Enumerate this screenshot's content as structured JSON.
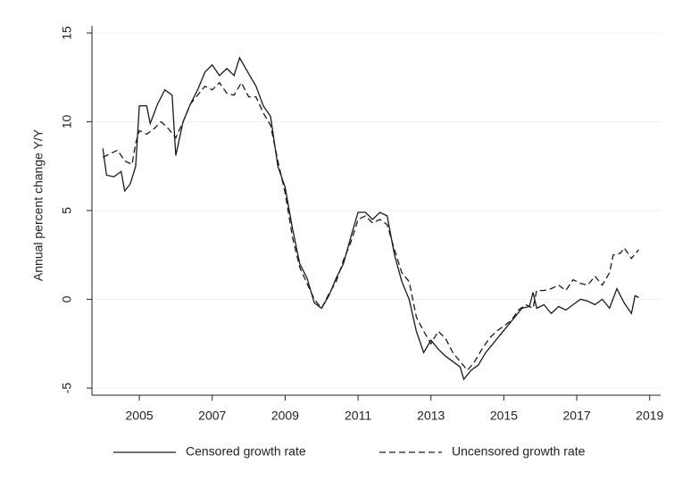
{
  "chart_data": {
    "type": "line",
    "ylabel": "Annual percent change Y/Y",
    "xlim": [
      2003.7,
      2019.3
    ],
    "xticks": [
      2005,
      2007,
      2009,
      2011,
      2013,
      2015,
      2017,
      2019
    ],
    "ylim": [
      -5.4,
      15.4
    ],
    "yticks": [
      -5,
      0,
      5,
      10,
      15
    ],
    "grid": true,
    "legend": "bottom",
    "series": [
      {
        "name": "Censored growth rate",
        "color": "#1a1a1a",
        "style": "solid",
        "x": [
          2004.0,
          2004.1,
          2004.3,
          2004.5,
          2004.6,
          2004.75,
          2004.9,
          2005.0,
          2005.2,
          2005.3,
          2005.5,
          2005.7,
          2005.9,
          2006.0,
          2006.2,
          2006.4,
          2006.6,
          2006.8,
          2007.0,
          2007.2,
          2007.4,
          2007.6,
          2007.75,
          2008.0,
          2008.2,
          2008.4,
          2008.6,
          2008.8,
          2009.0,
          2009.2,
          2009.4,
          2009.6,
          2009.8,
          2010.0,
          2010.2,
          2010.4,
          2010.6,
          2010.8,
          2011.0,
          2011.2,
          2011.4,
          2011.6,
          2011.8,
          2012.0,
          2012.2,
          2012.4,
          2012.6,
          2012.8,
          2013.0,
          2013.2,
          2013.4,
          2013.6,
          2013.8,
          2013.9,
          2014.1,
          2014.3,
          2014.5,
          2014.7,
          2014.9,
          2015.1,
          2015.3,
          2015.5,
          2015.7,
          2015.8,
          2015.9,
          2016.1,
          2016.3,
          2016.5,
          2016.7,
          2016.9,
          2017.1,
          2017.3,
          2017.5,
          2017.7,
          2017.9,
          2018.1,
          2018.3,
          2018.5,
          2018.6,
          2018.7
        ],
        "values": [
          8.5,
          7.0,
          6.9,
          7.2,
          6.1,
          6.5,
          7.5,
          10.9,
          10.9,
          9.9,
          11.0,
          11.8,
          11.5,
          8.1,
          10.0,
          11.0,
          11.8,
          12.8,
          13.2,
          12.6,
          13.0,
          12.6,
          13.6,
          12.7,
          12.0,
          10.9,
          10.3,
          7.5,
          6.3,
          4.0,
          2.0,
          1.2,
          -0.2,
          -0.5,
          0.2,
          1.2,
          2.0,
          3.5,
          4.9,
          4.9,
          4.5,
          4.9,
          4.7,
          2.5,
          1.0,
          0.0,
          -1.8,
          -3.0,
          -2.3,
          -2.8,
          -3.2,
          -3.5,
          -3.8,
          -4.5,
          -4.0,
          -3.7,
          -3.0,
          -2.5,
          -2.0,
          -1.5,
          -1.0,
          -0.5,
          -0.4,
          0.4,
          -0.5,
          -0.3,
          -0.8,
          -0.4,
          -0.6,
          -0.3,
          0.0,
          -0.1,
          -0.3,
          0.0,
          -0.5,
          0.6,
          -0.2,
          -0.8,
          0.2,
          0.1
        ]
      },
      {
        "name": "Uncensored growth rate",
        "color": "#1a1a1a",
        "style": "dashed",
        "x": [
          2004.0,
          2004.2,
          2004.4,
          2004.6,
          2004.8,
          2004.9,
          2005.0,
          2005.2,
          2005.4,
          2005.6,
          2005.8,
          2006.0,
          2006.2,
          2006.4,
          2006.6,
          2006.8,
          2007.0,
          2007.2,
          2007.4,
          2007.6,
          2007.8,
          2008.0,
          2008.2,
          2008.4,
          2008.6,
          2008.8,
          2009.0,
          2009.2,
          2009.4,
          2009.6,
          2009.8,
          2010.0,
          2010.2,
          2010.4,
          2010.6,
          2010.8,
          2011.0,
          2011.2,
          2011.4,
          2011.6,
          2011.8,
          2012.0,
          2012.2,
          2012.4,
          2012.6,
          2012.8,
          2013.0,
          2013.2,
          2013.4,
          2013.6,
          2013.8,
          2014.0,
          2014.2,
          2014.4,
          2014.6,
          2014.8,
          2015.0,
          2015.2,
          2015.4,
          2015.6,
          2015.8,
          2015.9,
          2016.1,
          2016.3,
          2016.5,
          2016.7,
          2016.9,
          2017.1,
          2017.3,
          2017.5,
          2017.7,
          2017.9,
          2018.0,
          2018.2,
          2018.3,
          2018.5,
          2018.7
        ],
        "values": [
          8.0,
          8.2,
          8.4,
          7.8,
          7.6,
          8.8,
          9.5,
          9.3,
          9.6,
          10.0,
          9.6,
          9.1,
          10.0,
          11.0,
          11.5,
          12.0,
          11.8,
          12.2,
          11.6,
          11.5,
          12.2,
          11.4,
          11.4,
          10.5,
          9.8,
          7.8,
          6.0,
          3.5,
          1.8,
          0.9,
          0.0,
          -0.5,
          0.3,
          1.0,
          2.2,
          3.2,
          4.5,
          4.7,
          4.3,
          4.5,
          4.2,
          2.8,
          1.5,
          1.0,
          -1.0,
          -1.8,
          -2.5,
          -1.8,
          -2.2,
          -3.0,
          -3.5,
          -4.0,
          -3.5,
          -2.8,
          -2.2,
          -1.8,
          -1.5,
          -1.2,
          -0.6,
          -0.3,
          -0.5,
          0.5,
          0.5,
          0.6,
          0.8,
          0.5,
          1.1,
          0.9,
          0.8,
          1.3,
          0.8,
          1.5,
          2.5,
          2.6,
          2.9,
          2.3,
          2.8
        ]
      }
    ]
  }
}
